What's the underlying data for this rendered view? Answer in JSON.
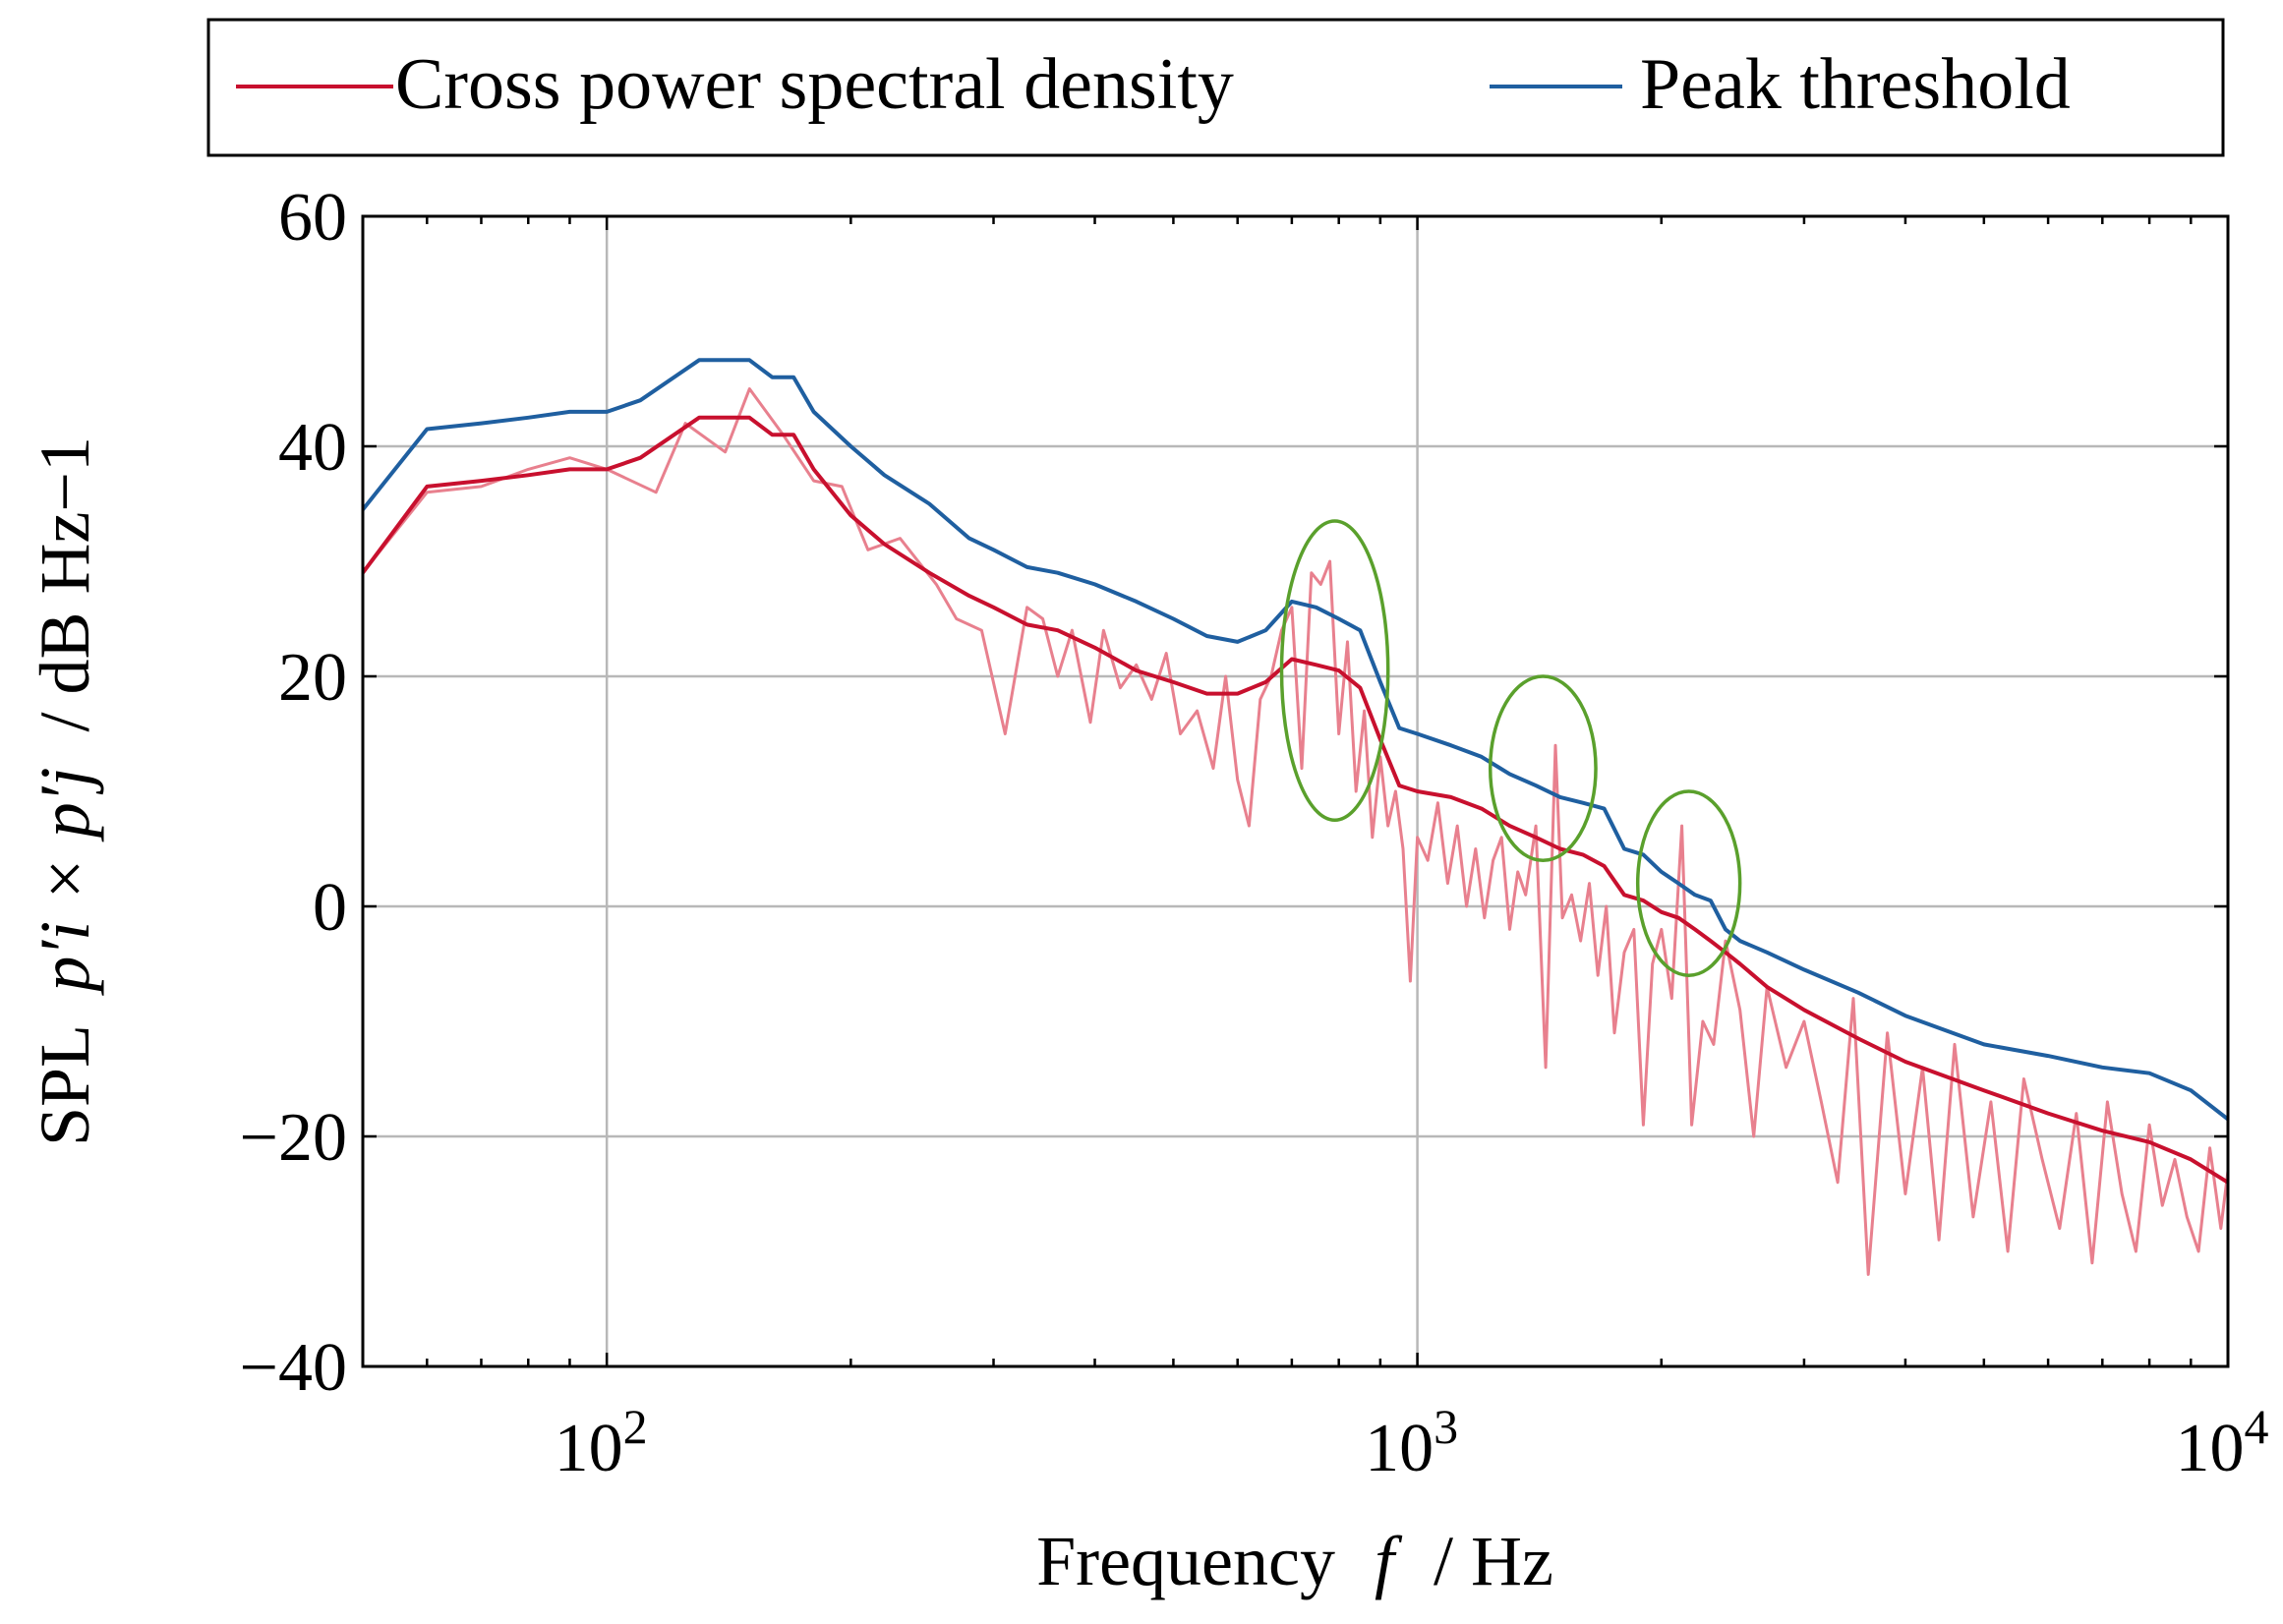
{
  "chart_data": {
    "type": "line",
    "xscale": "log",
    "xlim": [
      50,
      10000
    ],
    "ylim": [
      -40,
      60
    ],
    "grid": true,
    "legend_position": "top",
    "xlabel": {
      "text": "Frequency",
      "symbol": "f",
      "unit": "/ Hz"
    },
    "ylabel": {
      "prefix": "SPL",
      "expr": "p′i × p′j",
      "unit": "/ dB Hz−1"
    },
    "x_ticks": [
      {
        "value": 100,
        "base": "10",
        "exp": "2"
      },
      {
        "value": 1000,
        "base": "10",
        "exp": "3"
      },
      {
        "value": 10000,
        "base": "10",
        "exp": "4"
      }
    ],
    "y_ticks": [
      {
        "value": 60,
        "label": "60"
      },
      {
        "value": 40,
        "label": "40"
      },
      {
        "value": 20,
        "label": "20"
      },
      {
        "value": 0,
        "label": "0"
      },
      {
        "value": -20,
        "label": "−20"
      },
      {
        "value": -40,
        "label": "−40"
      }
    ],
    "series": [
      {
        "name": "Cross power spectral density",
        "color": "#c8102e",
        "raw_color": "#e8808e",
        "smoothed": {
          "x": [
            50,
            60,
            70,
            80,
            90,
            100,
            110,
            130,
            150,
            160,
            170,
            180,
            200,
            220,
            250,
            280,
            300,
            330,
            360,
            400,
            450,
            500,
            550,
            600,
            650,
            700,
            750,
            800,
            850,
            900,
            950,
            1000,
            1100,
            1200,
            1300,
            1400,
            1500,
            1600,
            1700,
            1800,
            1900,
            2000,
            2100,
            2200,
            2300,
            2400,
            2500,
            2700,
            3000,
            3500,
            4000,
            5000,
            6000,
            7000,
            8000,
            9000,
            10000
          ],
          "y": [
            29,
            36.5,
            37,
            37.5,
            38,
            38,
            39,
            42.5,
            42.5,
            41,
            41,
            38,
            34,
            31.5,
            29,
            27,
            26,
            24.5,
            24,
            22.5,
            20.5,
            19.5,
            18.5,
            18.5,
            19.5,
            21.5,
            21,
            20.5,
            19,
            14.5,
            10.5,
            10,
            9.5,
            8.5,
            7,
            6,
            5,
            4.5,
            3.5,
            1,
            0.5,
            -0.5,
            -1,
            -2,
            -3,
            -4,
            -5,
            -7,
            -9,
            -11.5,
            -13.5,
            -16,
            -18,
            -19.5,
            -20.5,
            -22,
            -24
          ]
        },
        "raw": {
          "x": [
            50,
            60,
            70,
            80,
            90,
            100,
            115,
            125,
            140,
            150,
            165,
            180,
            195,
            210,
            230,
            255,
            270,
            290,
            310,
            330,
            345,
            360,
            375,
            395,
            410,
            430,
            450,
            470,
            490,
            510,
            535,
            560,
            580,
            600,
            620,
            640,
            660,
            680,
            700,
            720,
            740,
            760,
            780,
            800,
            820,
            840,
            860,
            880,
            900,
            920,
            940,
            960,
            980,
            1000,
            1030,
            1060,
            1090,
            1120,
            1150,
            1180,
            1210,
            1240,
            1270,
            1300,
            1330,
            1360,
            1400,
            1440,
            1480,
            1510,
            1550,
            1590,
            1630,
            1670,
            1710,
            1750,
            1800,
            1850,
            1900,
            1950,
            2000,
            2060,
            2120,
            2180,
            2250,
            2320,
            2400,
            2500,
            2600,
            2700,
            2850,
            3000,
            3150,
            3300,
            3450,
            3600,
            3800,
            4000,
            4200,
            4400,
            4600,
            4850,
            5100,
            5350,
            5600,
            5900,
            6200,
            6500,
            6800,
            7100,
            7400,
            7700,
            8000,
            8300,
            8600,
            8900,
            9200,
            9500,
            9800,
            10000
          ],
          "y": [
            29,
            36,
            36.5,
            38,
            39,
            38,
            36,
            42,
            39.5,
            45,
            41,
            37,
            36.5,
            31,
            32,
            28,
            25,
            24,
            15,
            26,
            25,
            20,
            24,
            16,
            24,
            19,
            21,
            18,
            22,
            15,
            17,
            12,
            20,
            11,
            7,
            18,
            20,
            24,
            26,
            12,
            29,
            28,
            30,
            15,
            23,
            10,
            17,
            6,
            13,
            7,
            10,
            5,
            -6.5,
            6,
            4,
            9,
            2,
            7,
            0,
            5,
            -1,
            4,
            6,
            -2,
            3,
            1,
            7,
            -14,
            14,
            -1,
            1,
            -3,
            2,
            -6,
            0,
            -11,
            -4,
            -2,
            -19,
            -5,
            -2,
            -8,
            7,
            -19,
            -10,
            -12,
            -3,
            -9,
            -20,
            -7,
            -14,
            -10,
            -17,
            -24,
            -8,
            -32,
            -11,
            -25,
            -14,
            -29,
            -12,
            -27,
            -17,
            -30,
            -15,
            -22,
            -28,
            -18,
            -31,
            -17,
            -25,
            -30,
            -19,
            -26,
            -22,
            -27,
            -30,
            -21,
            -28,
            -23
          ]
        }
      },
      {
        "name": "Peak threshold",
        "color": "#1f5fa0",
        "x": [
          50,
          60,
          70,
          80,
          90,
          100,
          110,
          130,
          150,
          160,
          170,
          180,
          200,
          220,
          250,
          280,
          300,
          330,
          360,
          400,
          450,
          500,
          550,
          600,
          650,
          700,
          750,
          800,
          850,
          900,
          950,
          1000,
          1100,
          1200,
          1300,
          1400,
          1500,
          1600,
          1700,
          1800,
          1900,
          2000,
          2100,
          2200,
          2300,
          2400,
          2500,
          2700,
          3000,
          3500,
          4000,
          5000,
          6000,
          7000,
          8000,
          9000,
          10000
        ],
        "y": [
          34.5,
          41.5,
          42,
          42.5,
          43,
          43,
          44,
          47.5,
          47.5,
          46,
          46,
          43,
          40,
          37.5,
          35,
          32,
          31,
          29.5,
          29,
          28,
          26.5,
          25,
          23.5,
          23,
          24,
          26.5,
          26,
          25,
          24,
          19.5,
          15.5,
          15,
          14,
          13,
          11.5,
          10.5,
          9.5,
          9,
          8.5,
          5,
          4.5,
          3,
          2,
          1,
          0.5,
          -2,
          -3,
          -4,
          -5.5,
          -7.5,
          -9.5,
          -12,
          -13,
          -14,
          -14.5,
          -16,
          -18.5
        ]
      }
    ],
    "annotations": [
      {
        "shape": "ellipse",
        "color": "#5aa02c",
        "x_range": [
          680,
          920
        ],
        "y_range": [
          7.5,
          33.5
        ]
      },
      {
        "shape": "ellipse",
        "color": "#5aa02c",
        "x_range": [
          1230,
          1660
        ],
        "y_range": [
          4,
          20
        ]
      },
      {
        "shape": "ellipse",
        "color": "#5aa02c",
        "x_range": [
          1870,
          2500
        ],
        "y_range": [
          -6,
          10
        ]
      }
    ]
  }
}
